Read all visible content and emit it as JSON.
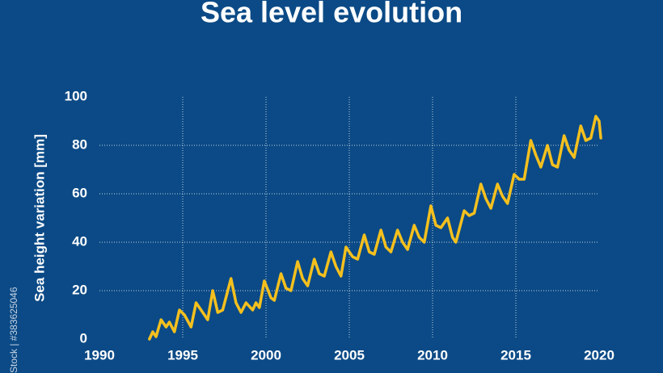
{
  "chart_data": {
    "type": "line",
    "title": "Sea level evolution",
    "y_label": "Sea height variation [mm]",
    "watermark": "Stock | #383625046",
    "grid": true,
    "xlim": [
      1990,
      2020
    ],
    "xticks": [
      1990,
      1995,
      2000,
      2005,
      2010,
      2015,
      2020
    ],
    "ylim": [
      0,
      100
    ],
    "yticks": [
      0,
      20,
      40,
      60,
      80,
      100
    ],
    "x": [
      1993.0,
      1993.2,
      1993.4,
      1993.7,
      1994.0,
      1994.2,
      1994.5,
      1994.8,
      1995.1,
      1995.5,
      1995.8,
      1996.1,
      1996.5,
      1996.8,
      1997.1,
      1997.4,
      1997.9,
      1998.2,
      1998.5,
      1998.8,
      1999.2,
      1999.4,
      1999.6,
      1999.9,
      2000.3,
      2000.5,
      2000.9,
      2001.2,
      2001.5,
      2001.9,
      2002.2,
      2002.5,
      2002.9,
      2003.2,
      2003.5,
      2003.9,
      2004.2,
      2004.5,
      2004.8,
      2005.2,
      2005.5,
      2005.9,
      2006.2,
      2006.5,
      2006.9,
      2007.2,
      2007.5,
      2007.9,
      2008.2,
      2008.5,
      2008.9,
      2009.2,
      2009.5,
      2009.9,
      2010.2,
      2010.5,
      2010.9,
      2011.2,
      2011.4,
      2011.9,
      2012.2,
      2012.5,
      2012.9,
      2013.2,
      2013.5,
      2013.9,
      2014.2,
      2014.5,
      2014.9,
      2015.2,
      2015.5,
      2015.9,
      2016.2,
      2016.5,
      2016.9,
      2017.2,
      2017.5,
      2017.9,
      2018.2,
      2018.5,
      2018.9,
      2019.2,
      2019.5,
      2019.8,
      2020.0,
      2020.1
    ],
    "series": [
      {
        "name": "Sea height variation",
        "color": "#f4c01e",
        "values": [
          0,
          3,
          1,
          8,
          5,
          7,
          3,
          12,
          10,
          5,
          15,
          12,
          8,
          20,
          11,
          12,
          25,
          15,
          11,
          15,
          12,
          15,
          13,
          24,
          17,
          16,
          27,
          21,
          20,
          32,
          25,
          22,
          33,
          27,
          26,
          36,
          30,
          26,
          38,
          34,
          33,
          43,
          36,
          35,
          45,
          38,
          36,
          45,
          40,
          37,
          47,
          42,
          40,
          55,
          47,
          46,
          50,
          42,
          40,
          53,
          51,
          52,
          64,
          58,
          54,
          64,
          59,
          56,
          68,
          66,
          66,
          82,
          76,
          71,
          80,
          72,
          71,
          84,
          78,
          75,
          88,
          82,
          83,
          92,
          90,
          83
        ]
      }
    ]
  }
}
